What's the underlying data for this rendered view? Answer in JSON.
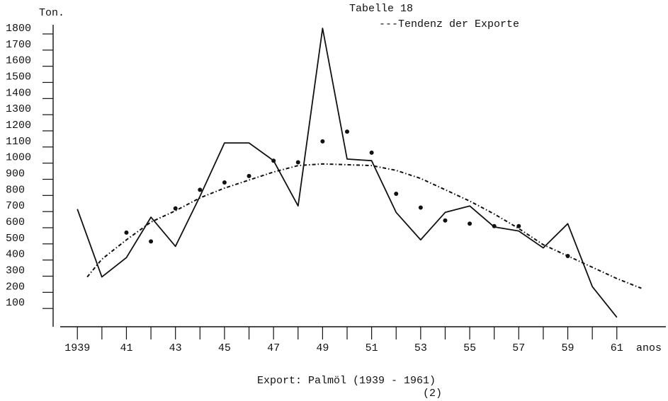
{
  "chart_data": {
    "type": "line",
    "title": "Tabelle 18",
    "y_label": "Ton.",
    "x_label": "anos",
    "caption": "Export: Palmöl (1939 - 1961)",
    "page_note": "(2)",
    "legend_text": "---Tendenz der Exporte",
    "x": [
      1939,
      1940,
      1941,
      1942,
      1943,
      1944,
      1945,
      1946,
      1947,
      1948,
      1949,
      1950,
      1951,
      1952,
      1953,
      1954,
      1955,
      1956,
      1957,
      1958,
      1959,
      1960,
      1961
    ],
    "series": [
      {
        "style": "solid",
        "color": "#111111",
        "values": [
          680,
          260,
          380,
          630,
          450,
          760,
          1090,
          1090,
          980,
          700,
          1800,
          990,
          980,
          660,
          490,
          660,
          700,
          570,
          545,
          440,
          590,
          200,
          10
        ]
      },
      {
        "style": "dots",
        "color": "#111111",
        "values": [
          null,
          null,
          535,
          480,
          685,
          800,
          845,
          885,
          980,
          970,
          1100,
          1160,
          1030,
          775,
          690,
          610,
          590,
          575,
          575,
          null,
          390,
          null,
          null
        ]
      },
      {
        "name": "Tendenz der Exporte",
        "style": "dashed",
        "color": "#111111",
        "x": [
          1939.4,
          1940,
          1941,
          1942,
          1943,
          1944,
          1945,
          1946,
          1947,
          1948,
          1949,
          1950,
          1951,
          1952,
          1953,
          1954,
          1955,
          1956,
          1957,
          1958,
          1959,
          1960,
          1961,
          1962
        ],
        "values": [
          260,
          370,
          490,
          600,
          670,
          750,
          810,
          860,
          910,
          950,
          960,
          955,
          950,
          920,
          870,
          800,
          730,
          650,
          560,
          460,
          390,
          320,
          250,
          190
        ]
      }
    ],
    "xlim": [
      1938.3,
      1963
    ],
    "ylim": [
      0,
      1800
    ],
    "yticks": [
      100,
      200,
      300,
      400,
      500,
      600,
      700,
      800,
      900,
      1000,
      1100,
      1200,
      1300,
      1400,
      1500,
      1600,
      1700,
      1800
    ],
    "xticks": [
      1939,
      1940,
      1941,
      1942,
      1943,
      1944,
      1945,
      1946,
      1947,
      1948,
      1949,
      1950,
      1951,
      1952,
      1953,
      1954,
      1955,
      1956,
      1957,
      1958,
      1959,
      1960,
      1961
    ],
    "xtick_labels": [
      {
        "value": 1939,
        "label": "1939"
      },
      {
        "value": 1941,
        "label": "41"
      },
      {
        "value": 1943,
        "label": "43"
      },
      {
        "value": 1945,
        "label": "45"
      },
      {
        "value": 1947,
        "label": "47"
      },
      {
        "value": 1949,
        "label": "49"
      },
      {
        "value": 1951,
        "label": "51"
      },
      {
        "value": 1953,
        "label": "53"
      },
      {
        "value": 1955,
        "label": "55"
      },
      {
        "value": 1957,
        "label": "57"
      },
      {
        "value": 1959,
        "label": "59"
      },
      {
        "value": 1961,
        "label": "61"
      }
    ]
  }
}
